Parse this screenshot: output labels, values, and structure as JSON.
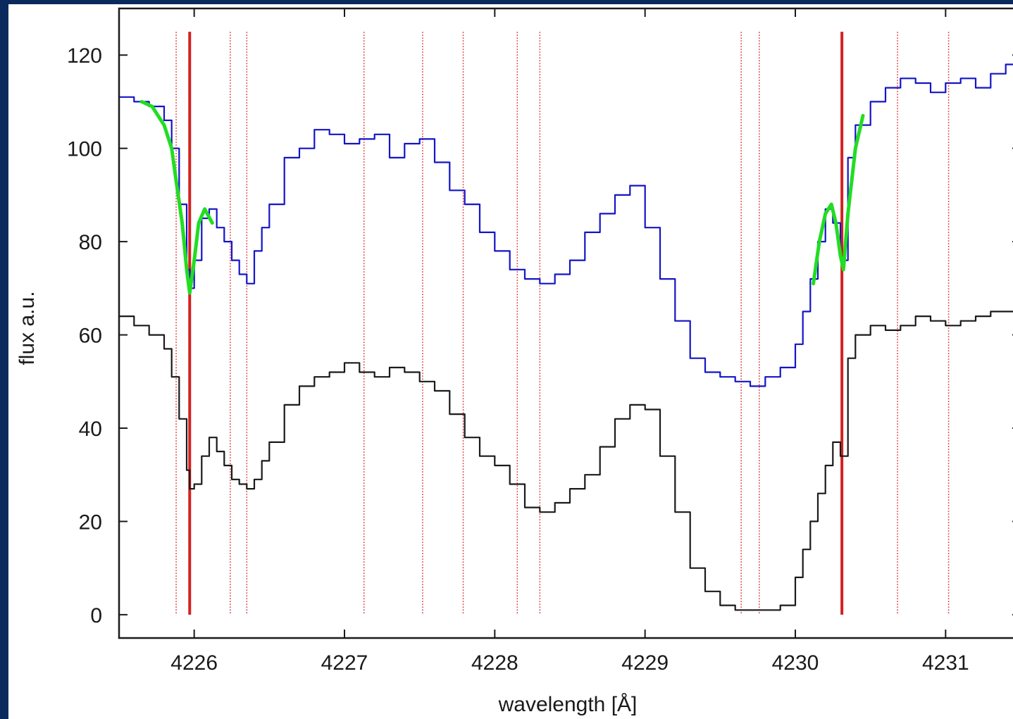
{
  "chart_data": {
    "type": "line",
    "title": "",
    "xlabel": "wavelength [Å]",
    "ylabel": "flux a.u.",
    "xlim": [
      4225.5,
      4231.5
    ],
    "ylim": [
      -5,
      130
    ],
    "xticks": [
      "4226",
      "4227",
      "4228",
      "4229",
      "4230",
      "4231"
    ],
    "yticks": [
      "0",
      "20",
      "40",
      "60",
      "80",
      "100",
      "120"
    ],
    "colors": {
      "observed": "#1414c8",
      "model": "#1a1a1a",
      "fit": "#22dd22",
      "strong_line": "#d42020",
      "weak_line": "#e05050"
    },
    "strong_lines": [
      4225.97,
      4230.31
    ],
    "weak_lines": [
      4225.88,
      4226.24,
      4226.35,
      4227.13,
      4227.52,
      4227.79,
      4228.15,
      4228.3,
      4229.64,
      4229.76,
      4230.68,
      4231.02
    ],
    "series": [
      {
        "role": "observed",
        "x": [
          4225.5,
          4225.6,
          4225.7,
          4225.8,
          4225.85,
          4225.9,
          4225.95,
          4225.97,
          4226.0,
          4226.05,
          4226.1,
          4226.15,
          4226.2,
          4226.25,
          4226.3,
          4226.35,
          4226.4,
          4226.45,
          4226.5,
          4226.6,
          4226.7,
          4226.8,
          4226.9,
          4227.0,
          4227.1,
          4227.2,
          4227.3,
          4227.4,
          4227.5,
          4227.6,
          4227.7,
          4227.8,
          4227.9,
          4228.0,
          4228.1,
          4228.2,
          4228.3,
          4228.4,
          4228.5,
          4228.6,
          4228.7,
          4228.8,
          4228.9,
          4229.0,
          4229.1,
          4229.2,
          4229.3,
          4229.4,
          4229.5,
          4229.6,
          4229.7,
          4229.8,
          4229.9,
          4230.0,
          4230.05,
          4230.1,
          4230.15,
          4230.2,
          4230.25,
          4230.3,
          4230.35,
          4230.4,
          4230.5,
          4230.6,
          4230.7,
          4230.8,
          4230.9,
          4231.0,
          4231.1,
          4231.2,
          4231.3,
          4231.4,
          4231.5
        ],
        "y": [
          111,
          110,
          109,
          106,
          100,
          88,
          74,
          70,
          76,
          85,
          87,
          83,
          80,
          76,
          73,
          71,
          78,
          83,
          88,
          98,
          100,
          104,
          103,
          101,
          102,
          103,
          98,
          101,
          102,
          97,
          91,
          88,
          82,
          78,
          74,
          72,
          71,
          73,
          76,
          82,
          86,
          90,
          92,
          83,
          72,
          63,
          55,
          52,
          51,
          50,
          49,
          51,
          53,
          58,
          65,
          72,
          80,
          87,
          84,
          76,
          98,
          105,
          110,
          113,
          115,
          114,
          112,
          114,
          115,
          113,
          116,
          118,
          114
        ]
      },
      {
        "role": "model",
        "x": [
          4225.5,
          4225.6,
          4225.7,
          4225.8,
          4225.85,
          4225.9,
          4225.95,
          4225.97,
          4226.0,
          4226.05,
          4226.1,
          4226.15,
          4226.2,
          4226.25,
          4226.3,
          4226.35,
          4226.4,
          4226.45,
          4226.5,
          4226.6,
          4226.7,
          4226.8,
          4226.9,
          4227.0,
          4227.1,
          4227.2,
          4227.3,
          4227.4,
          4227.5,
          4227.6,
          4227.7,
          4227.8,
          4227.9,
          4228.0,
          4228.1,
          4228.2,
          4228.3,
          4228.4,
          4228.5,
          4228.6,
          4228.7,
          4228.8,
          4228.9,
          4229.0,
          4229.1,
          4229.2,
          4229.3,
          4229.4,
          4229.5,
          4229.6,
          4229.7,
          4229.8,
          4229.9,
          4230.0,
          4230.05,
          4230.1,
          4230.15,
          4230.2,
          4230.25,
          4230.3,
          4230.35,
          4230.4,
          4230.5,
          4230.6,
          4230.7,
          4230.8,
          4230.9,
          4231.0,
          4231.1,
          4231.2,
          4231.3,
          4231.4,
          4231.5
        ],
        "y": [
          64,
          62,
          60,
          57,
          51,
          42,
          31,
          27,
          28,
          34,
          38,
          35,
          32,
          29,
          28,
          27,
          29,
          33,
          37,
          45,
          49,
          51,
          52,
          54,
          52,
          51,
          53,
          52,
          50,
          48,
          43,
          38,
          34,
          32,
          28,
          23,
          22,
          24,
          27,
          30,
          36,
          42,
          45,
          44,
          34,
          22,
          10,
          5,
          2,
          1,
          1,
          1,
          2,
          8,
          14,
          20,
          26,
          32,
          37,
          34,
          55,
          60,
          62,
          61,
          62,
          64,
          63,
          62,
          63,
          64,
          65,
          65,
          65
        ]
      },
      {
        "role": "fit",
        "x": [
          4225.65,
          4225.72,
          4225.8,
          4225.85,
          4225.88,
          4225.92,
          4225.95,
          4225.97,
          4226.0,
          4226.03,
          4226.07,
          4226.12
        ],
        "y": [
          110,
          109,
          105,
          100,
          93,
          84,
          74,
          69,
          76,
          84,
          87,
          84
        ]
      },
      {
        "role": "fit",
        "x": [
          4230.12,
          4230.16,
          4230.2,
          4230.24,
          4230.27,
          4230.3,
          4230.32,
          4230.35,
          4230.4,
          4230.45
        ],
        "y": [
          71,
          80,
          86,
          88,
          84,
          77,
          74,
          86,
          100,
          107
        ]
      }
    ]
  }
}
